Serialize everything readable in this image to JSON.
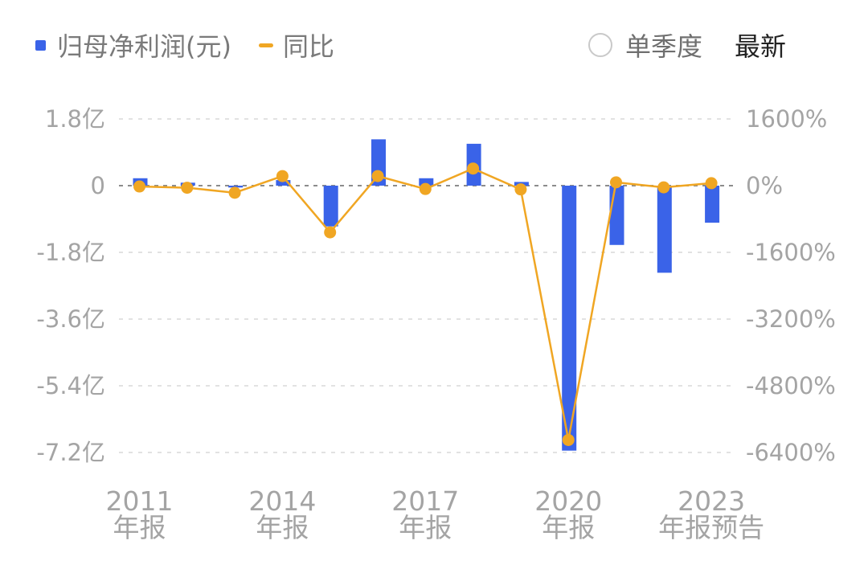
{
  "legend": {
    "bar_label": "归母净利润(元)",
    "line_label": "同比"
  },
  "controls": {
    "quarter_label": "单季度",
    "latest_label": "最新"
  },
  "colors": {
    "bar": "#3a63e8",
    "line": "#f0a623",
    "grid": "#e2e2e2",
    "zero_line": "#8c8c8c",
    "tick_text": "#a4a4a4"
  },
  "chart_data": {
    "type": "bar",
    "categories": [
      "2011年报",
      "2012年报",
      "2013年报",
      "2014年报",
      "2015年报",
      "2016年报",
      "2017年报",
      "2018年报",
      "2019年报",
      "2020年报",
      "2021年报",
      "2022年报",
      "2023年报预告"
    ],
    "x_tick_labels": [
      {
        "index": 0,
        "year": "2011",
        "suffix": "年报"
      },
      {
        "index": 3,
        "year": "2014",
        "suffix": "年报"
      },
      {
        "index": 6,
        "year": "2017",
        "suffix": "年报"
      },
      {
        "index": 9,
        "year": "2020",
        "suffix": "年报"
      },
      {
        "index": 12,
        "year": "2023",
        "suffix": "年报预告"
      }
    ],
    "series": [
      {
        "type": "bar",
        "axis": "left",
        "unit": "亿",
        "values": [
          0.2,
          0.08,
          -0.05,
          0.15,
          -1.1,
          1.25,
          0.2,
          1.13,
          0.1,
          -7.15,
          -1.6,
          -2.35,
          -1.0
        ]
      },
      {
        "type": "line",
        "axis": "right",
        "unit": "%",
        "values": [
          -20,
          -50,
          -170,
          230,
          -1120,
          230,
          -80,
          410,
          -90,
          -6100,
          80,
          -40,
          60
        ]
      }
    ],
    "y_left": {
      "range": [
        -7.2,
        1.8
      ],
      "ticks": [
        1.8,
        0,
        -1.8,
        -3.6,
        -5.4,
        -7.2
      ],
      "tick_labels": [
        "1.8亿",
        "0",
        "-1.8亿",
        "-3.6亿",
        "-5.4亿",
        "-7.2亿"
      ]
    },
    "y_right": {
      "range": [
        -6400,
        1600
      ],
      "tick_labels": [
        "1600%",
        "0%",
        "-1600%",
        "-3200%",
        "-4800%",
        "-6400%"
      ]
    },
    "grid": true,
    "legend_position": "top-left"
  }
}
